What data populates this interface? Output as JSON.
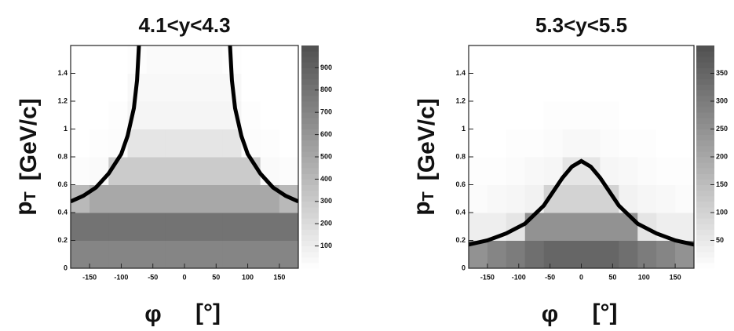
{
  "chart_data": [
    {
      "type": "heatmap",
      "title": "4.1<y<4.3",
      "xlabel": "φ",
      "xlabel_unit": "[°]",
      "ylabel": "p",
      "ylabel_sub": "T",
      "ylabel_unit": "[GeV/c]",
      "xlim": [
        -180,
        180
      ],
      "xticks": [
        -150,
        -100,
        -50,
        0,
        50,
        100,
        150
      ],
      "ylim": [
        0,
        1.6
      ],
      "yticks": [
        0,
        0.2,
        0.4,
        0.6,
        0.8,
        1,
        1.2,
        1.4
      ],
      "zlim": [
        0,
        1000
      ],
      "zticks": [
        100,
        200,
        300,
        400,
        500,
        600,
        700,
        800,
        900
      ],
      "xbins": [
        -180,
        -150,
        -120,
        -90,
        -60,
        -30,
        0,
        30,
        60,
        90,
        120,
        150,
        180
      ],
      "ybins": [
        0,
        0.2,
        0.4,
        0.6,
        0.8,
        1,
        1.2,
        1.4,
        1.6
      ],
      "z": [
        [
          700,
          700,
          700,
          700,
          700,
          700,
          700,
          700,
          700,
          700,
          700,
          700
        ],
        [
          800,
          800,
          800,
          800,
          800,
          800,
          800,
          800,
          800,
          800,
          800,
          800
        ],
        [
          400,
          500,
          500,
          500,
          500,
          500,
          500,
          500,
          500,
          500,
          500,
          400
        ],
        [
          20,
          30,
          300,
          300,
          300,
          300,
          300,
          300,
          300,
          300,
          30,
          20
        ],
        [
          0,
          10,
          20,
          150,
          150,
          150,
          150,
          150,
          150,
          20,
          10,
          0
        ],
        [
          0,
          0,
          10,
          60,
          60,
          60,
          60,
          60,
          60,
          10,
          0,
          0
        ],
        [
          0,
          0,
          0,
          40,
          40,
          40,
          40,
          40,
          40,
          0,
          0,
          0
        ],
        [
          0,
          0,
          0,
          10,
          30,
          30,
          30,
          30,
          10,
          0,
          0,
          0
        ]
      ],
      "curve": {
        "color": "#000000",
        "x": [
          -180,
          -160,
          -140,
          -120,
          -100,
          -90,
          -80,
          -75,
          -72,
          null,
          72,
          75,
          80,
          90,
          100,
          120,
          140,
          160,
          180
        ],
        "values": [
          0.48,
          0.52,
          0.58,
          0.68,
          0.82,
          0.95,
          1.15,
          1.35,
          1.6,
          null,
          1.6,
          1.35,
          1.15,
          0.95,
          0.82,
          0.68,
          0.58,
          0.52,
          0.48
        ]
      }
    },
    {
      "type": "heatmap",
      "title": "5.3<y<5.5",
      "xlabel": "φ",
      "xlabel_unit": "[°]",
      "ylabel": "p",
      "ylabel_sub": "T",
      "ylabel_unit": "[GeV/c]",
      "xlim": [
        -180,
        180
      ],
      "xticks": [
        -150,
        -100,
        -50,
        0,
        50,
        100,
        150
      ],
      "ylim": [
        0,
        1.6
      ],
      "yticks": [
        0,
        0.2,
        0.4,
        0.6,
        0.8,
        1,
        1.2,
        1.4
      ],
      "zlim": [
        0,
        400
      ],
      "zticks": [
        50,
        100,
        150,
        200,
        250,
        300,
        350
      ],
      "xbins": [
        -180,
        -150,
        -120,
        -90,
        -60,
        -30,
        0,
        30,
        60,
        90,
        120,
        150,
        180
      ],
      "ybins": [
        0,
        0.2,
        0.4,
        0.6,
        0.8,
        1,
        1.2,
        1.4,
        1.6
      ],
      "z": [
        [
          250,
          280,
          300,
          330,
          350,
          350,
          350,
          350,
          330,
          300,
          280,
          250
        ],
        [
          40,
          40,
          60,
          250,
          250,
          250,
          250,
          250,
          250,
          60,
          40,
          40
        ],
        [
          10,
          15,
          20,
          30,
          100,
          100,
          100,
          100,
          30,
          20,
          15,
          10
        ],
        [
          5,
          5,
          10,
          15,
          20,
          60,
          60,
          20,
          15,
          10,
          5,
          5
        ],
        [
          0,
          0,
          5,
          5,
          10,
          15,
          15,
          10,
          5,
          5,
          0,
          0
        ],
        [
          0,
          0,
          0,
          0,
          5,
          5,
          5,
          5,
          0,
          0,
          0,
          0
        ],
        [
          0,
          0,
          0,
          0,
          0,
          0,
          0,
          0,
          0,
          0,
          0,
          0
        ],
        [
          0,
          0,
          0,
          0,
          0,
          0,
          0,
          0,
          0,
          0,
          0,
          0
        ]
      ],
      "curve": {
        "color": "#000000",
        "x": [
          -180,
          -150,
          -120,
          -90,
          -60,
          -30,
          -15,
          0,
          15,
          30,
          60,
          90,
          120,
          150,
          180
        ],
        "values": [
          0.17,
          0.2,
          0.25,
          0.32,
          0.45,
          0.65,
          0.73,
          0.77,
          0.73,
          0.65,
          0.45,
          0.32,
          0.25,
          0.2,
          0.17
        ]
      }
    }
  ]
}
